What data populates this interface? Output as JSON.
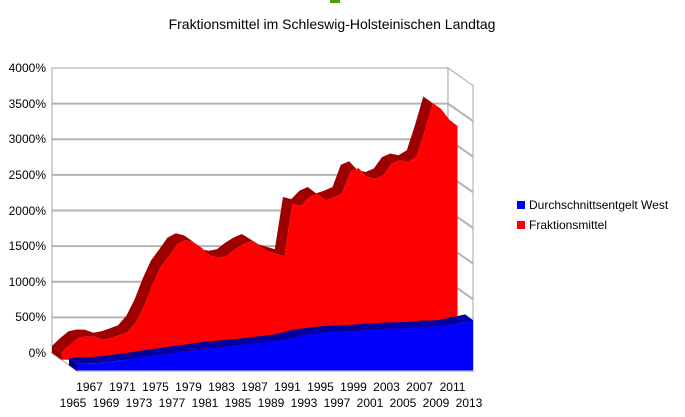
{
  "title": "Fraktionsmittel im Schleswig-Holsteinischen Landtag",
  "artifact": {
    "color": "#4f9d08"
  },
  "legend": {
    "items": [
      {
        "label": "Durchschnittsentgelt West",
        "color": "#0000ff"
      },
      {
        "label": "Fraktionsmittel",
        "color": "#ff0000"
      }
    ]
  },
  "y_axis": {
    "tick_labels": [
      "0%",
      "500%",
      "1000%",
      "1500%",
      "2000%",
      "2500%",
      "3000%",
      "3500%",
      "4000%"
    ]
  },
  "x_axis": {
    "tick_labels": [
      "1965",
      "1967",
      "1969",
      "1971",
      "1973",
      "1975",
      "1977",
      "1979",
      "1981",
      "1983",
      "1985",
      "1987",
      "1989",
      "1991",
      "1993",
      "1995",
      "1997",
      "1999",
      "2001",
      "2003",
      "2005",
      "2007",
      "2009",
      "2011",
      "2013"
    ]
  },
  "chart_data": {
    "type": "area",
    "style": "3d-area-deep",
    "title": "Fraktionsmittel im Schleswig-Holsteinischen Landtag",
    "x": [
      1965,
      1966,
      1967,
      1968,
      1969,
      1970,
      1971,
      1972,
      1973,
      1974,
      1975,
      1976,
      1977,
      1978,
      1979,
      1980,
      1981,
      1982,
      1983,
      1984,
      1985,
      1986,
      1987,
      1988,
      1989,
      1990,
      1991,
      1992,
      1993,
      1994,
      1995,
      1996,
      1997,
      1998,
      1999,
      2000,
      2001,
      2002,
      2003,
      2004,
      2005,
      2006,
      2007,
      2008,
      2009,
      2010,
      2011,
      2012,
      2013
    ],
    "series": [
      {
        "name": "Fraktionsmittel",
        "color": "#ff0000",
        "depth": "back",
        "values": [
          100,
          210,
          305,
          330,
          325,
          285,
          305,
          345,
          390,
          520,
          750,
          1050,
          1300,
          1455,
          1620,
          1680,
          1650,
          1570,
          1460,
          1435,
          1455,
          1550,
          1620,
          1670,
          1600,
          1525,
          1490,
          1455,
          2190,
          2160,
          2280,
          2330,
          2240,
          2280,
          2330,
          2640,
          2690,
          2570,
          2540,
          2590,
          2750,
          2800,
          2775,
          2845,
          3200,
          3600,
          3520,
          3370,
          3280
        ]
      },
      {
        "name": "Durchschnittsentgelt West",
        "color": "#0000ff",
        "depth": "front",
        "values": [
          100,
          107,
          110,
          117,
          127,
          142,
          158,
          172,
          191,
          211,
          226,
          242,
          259,
          273,
          288,
          307,
          321,
          334,
          345,
          356,
          367,
          380,
          393,
          405,
          417,
          436,
          461,
          496,
          513,
          525,
          542,
          550,
          555,
          560,
          566,
          573,
          584,
          592,
          598,
          601,
          602,
          607,
          616,
          629,
          626,
          640,
          664,
          687,
          713
        ]
      }
    ],
    "ylim": [
      0,
      4000
    ],
    "y_tick_step": 500,
    "y_format": "percent",
    "x_tick_step_years": 2,
    "grid": true,
    "legend_position": "right",
    "wall_color": "#ffffff",
    "grid_color": "#b3b3b3"
  }
}
